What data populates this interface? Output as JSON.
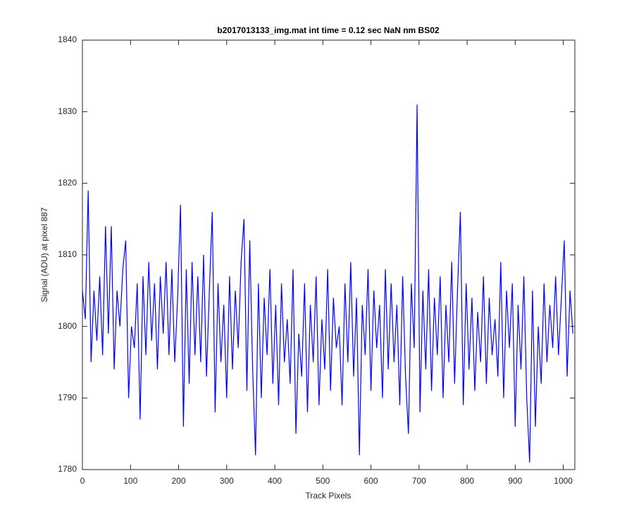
{
  "chart_data": {
    "type": "line",
    "title": "b2017013133_img.mat int time = 0.12 sec  NaN nm BS02",
    "x_label": "Track Pixels",
    "y_label": "Signal (ADU) at pixel 887",
    "x": [
      0,
      6,
      12,
      18,
      24,
      30,
      36,
      42,
      48,
      54,
      60,
      66,
      72,
      78,
      84,
      90,
      96,
      102,
      108,
      114,
      120,
      126,
      132,
      138,
      144,
      150,
      156,
      162,
      168,
      174,
      180,
      186,
      192,
      198,
      204,
      210,
      216,
      222,
      228,
      234,
      240,
      246,
      252,
      258,
      264,
      270,
      276,
      282,
      288,
      294,
      300,
      306,
      312,
      318,
      324,
      330,
      336,
      342,
      348,
      354,
      360,
      366,
      372,
      378,
      384,
      390,
      396,
      402,
      408,
      414,
      420,
      426,
      432,
      438,
      444,
      450,
      456,
      462,
      468,
      474,
      480,
      486,
      492,
      498,
      504,
      510,
      516,
      522,
      528,
      534,
      540,
      546,
      552,
      558,
      564,
      570,
      576,
      582,
      588,
      594,
      600,
      606,
      612,
      618,
      624,
      630,
      636,
      642,
      648,
      654,
      660,
      666,
      672,
      678,
      684,
      690,
      696,
      702,
      708,
      714,
      720,
      726,
      732,
      738,
      744,
      750,
      756,
      762,
      768,
      774,
      780,
      786,
      792,
      798,
      804,
      810,
      816,
      822,
      828,
      834,
      840,
      846,
      852,
      858,
      864,
      870,
      876,
      882,
      888,
      894,
      900,
      906,
      912,
      918,
      924,
      930,
      936,
      942,
      948,
      954,
      960,
      966,
      972,
      978,
      984,
      990,
      996,
      1002,
      1008,
      1014,
      1020
    ],
    "series": [
      {
        "name": "signal",
        "color": "#0000ff",
        "values": [
          1805,
          1801,
          1819,
          1795,
          1805,
          1798,
          1807,
          1796,
          1814,
          1799,
          1814,
          1794,
          1805,
          1800,
          1808,
          1812,
          1790,
          1800,
          1797,
          1806,
          1787,
          1807,
          1796,
          1809,
          1798,
          1806,
          1794,
          1807,
          1799,
          1809,
          1796,
          1808,
          1795,
          1804,
          1817,
          1786,
          1808,
          1792,
          1809,
          1796,
          1807,
          1795,
          1810,
          1793,
          1805,
          1816,
          1788,
          1806,
          1795,
          1803,
          1790,
          1807,
          1794,
          1805,
          1797,
          1809,
          1815,
          1791,
          1812,
          1794,
          1782,
          1806,
          1790,
          1804,
          1796,
          1808,
          1792,
          1803,
          1789,
          1806,
          1795,
          1801,
          1792,
          1808,
          1785,
          1799,
          1793,
          1806,
          1788,
          1803,
          1795,
          1807,
          1789,
          1801,
          1794,
          1808,
          1791,
          1804,
          1797,
          1800,
          1789,
          1806,
          1795,
          1809,
          1793,
          1804,
          1782,
          1803,
          1796,
          1808,
          1791,
          1805,
          1797,
          1803,
          1790,
          1808,
          1794,
          1806,
          1795,
          1803,
          1789,
          1807,
          1793,
          1785,
          1806,
          1797,
          1831,
          1788,
          1805,
          1794,
          1808,
          1791,
          1804,
          1796,
          1807,
          1790,
          1803,
          1795,
          1809,
          1792,
          1805,
          1816,
          1789,
          1806,
          1794,
          1804,
          1791,
          1802,
          1795,
          1807,
          1792,
          1804,
          1796,
          1801,
          1793,
          1809,
          1790,
          1805,
          1797,
          1806,
          1786,
          1803,
          1794,
          1807,
          1790,
          1781,
          1805,
          1786,
          1800,
          1792,
          1806,
          1795,
          1803,
          1797,
          1807,
          1796,
          1804,
          1812,
          1793,
          1805,
          1799
        ]
      }
    ],
    "xlim": [
      0,
      1024
    ],
    "xticks": [
      0,
      100,
      200,
      300,
      400,
      500,
      600,
      700,
      800,
      900,
      1000
    ],
    "ylim": [
      1780,
      1840
    ],
    "yticks": [
      1780,
      1790,
      1800,
      1810,
      1820,
      1830,
      1840
    ],
    "grid": false
  }
}
